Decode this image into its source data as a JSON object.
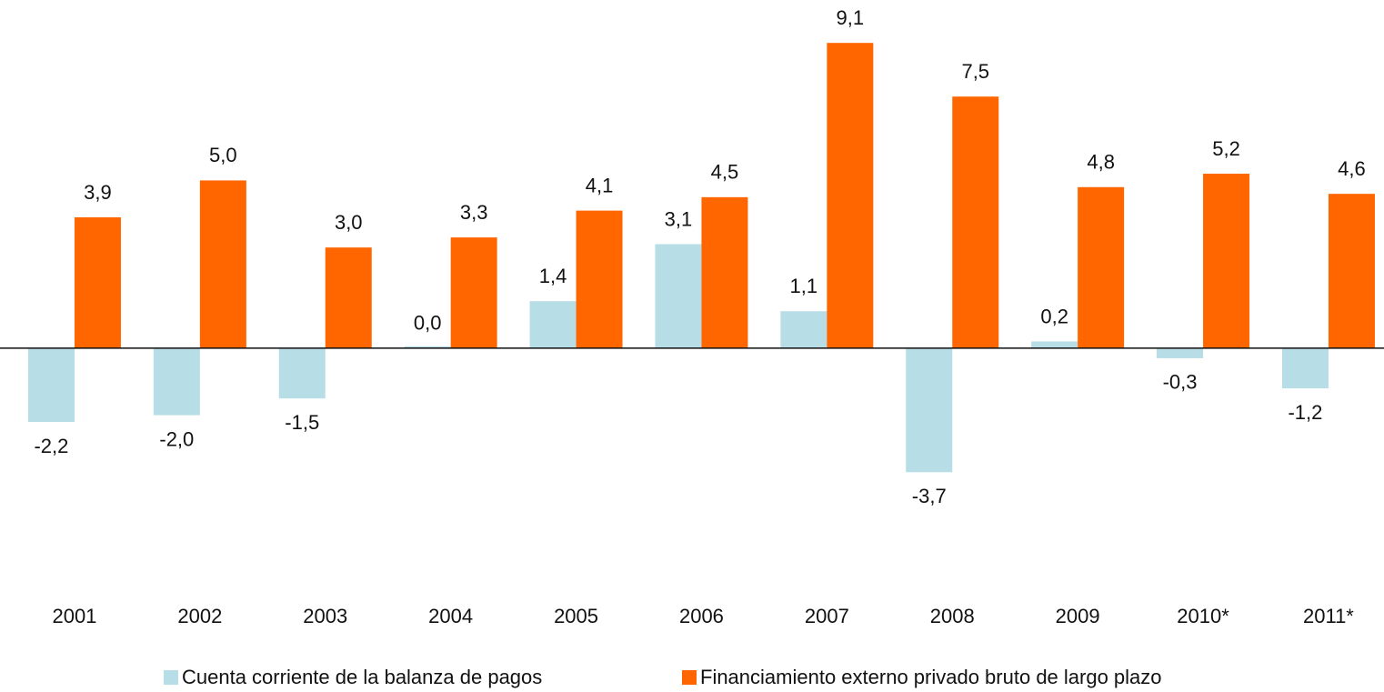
{
  "chart_data": {
    "type": "bar",
    "categories": [
      "2001",
      "2002",
      "2003",
      "2004",
      "2005",
      "2006",
      "2007",
      "2008",
      "2009",
      "2010*",
      "2011*"
    ],
    "series": [
      {
        "name": "Cuenta corriente de la balanza de pagos",
        "color": "#b7dde6",
        "values": [
          -2.2,
          -2.0,
          -1.5,
          0.0,
          1.4,
          3.1,
          1.1,
          -3.7,
          0.2,
          -0.3,
          -1.2
        ],
        "value_labels": [
          "-2,2",
          "-2,0",
          "-1,5",
          "0,0",
          "1,4",
          "3,1",
          "1,1",
          "-3,7",
          "0,2",
          "-0,3",
          "-1,2"
        ]
      },
      {
        "name": "Financiamiento externo privado bruto de largo plazo",
        "color": "#ff6600",
        "values": [
          3.9,
          5.0,
          3.0,
          3.3,
          4.1,
          4.5,
          9.1,
          7.5,
          4.8,
          5.2,
          4.6
        ],
        "value_labels": [
          "3,9",
          "5,0",
          "3,0",
          "3,3",
          "4,1",
          "4,5",
          "9,1",
          "7,5",
          "4,8",
          "5,2",
          "4,6"
        ]
      }
    ],
    "ylim": [
      -7,
      10
    ],
    "grid": false,
    "legend": "bottom"
  }
}
